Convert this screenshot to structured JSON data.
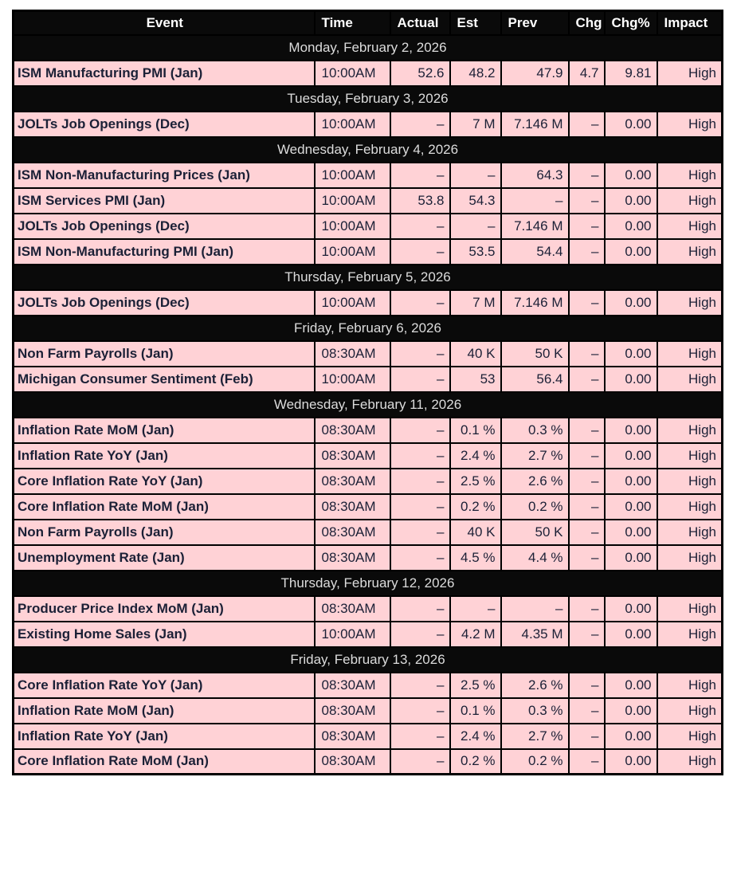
{
  "colors": {
    "header_bg": "#0a0a0a",
    "header_text": "#ffffff",
    "date_bg": "#0a0a0a",
    "date_text": "#dcdcdc",
    "row_bg": "#ffd2d6",
    "data_text": "#1b2036",
    "border": "#000000",
    "page_bg": "#ffffff"
  },
  "chart_data": {
    "type": "table",
    "columns": [
      "Event",
      "Time",
      "Actual",
      "Est",
      "Prev",
      "Chg",
      "Chg%",
      "Impact"
    ],
    "sections": [
      {
        "date": "Monday, February 2, 2026",
        "rows": [
          {
            "event": "ISM Manufacturing PMI (Jan)",
            "time": "10:00AM",
            "actual": "52.6",
            "est": "48.2",
            "prev": "47.9",
            "chg": "4.7",
            "chgpct": "9.81",
            "impact": "High"
          }
        ]
      },
      {
        "date": "Tuesday, February 3, 2026",
        "rows": [
          {
            "event": "JOLTs Job Openings (Dec)",
            "time": "10:00AM",
            "actual": "–",
            "est": "7 M",
            "prev": "7.146 M",
            "chg": "–",
            "chgpct": "0.00",
            "impact": "High"
          }
        ]
      },
      {
        "date": "Wednesday, February 4, 2026",
        "rows": [
          {
            "event": "ISM Non-Manufacturing Prices (Jan)",
            "time": "10:00AM",
            "actual": "–",
            "est": "–",
            "prev": "64.3",
            "chg": "–",
            "chgpct": "0.00",
            "impact": "High"
          },
          {
            "event": "ISM Services PMI (Jan)",
            "time": "10:00AM",
            "actual": "53.8",
            "est": "54.3",
            "prev": "–",
            "chg": "–",
            "chgpct": "0.00",
            "impact": "High"
          },
          {
            "event": "JOLTs Job Openings (Dec)",
            "time": "10:00AM",
            "actual": "–",
            "est": "–",
            "prev": "7.146 M",
            "chg": "–",
            "chgpct": "0.00",
            "impact": "High"
          },
          {
            "event": "ISM Non-Manufacturing PMI (Jan)",
            "time": "10:00AM",
            "actual": "–",
            "est": "53.5",
            "prev": "54.4",
            "chg": "–",
            "chgpct": "0.00",
            "impact": "High"
          }
        ]
      },
      {
        "date": "Thursday, February 5, 2026",
        "rows": [
          {
            "event": "JOLTs Job Openings (Dec)",
            "time": "10:00AM",
            "actual": "–",
            "est": "7 M",
            "prev": "7.146 M",
            "chg": "–",
            "chgpct": "0.00",
            "impact": "High"
          }
        ]
      },
      {
        "date": "Friday, February 6, 2026",
        "rows": [
          {
            "event": "Non Farm Payrolls (Jan)",
            "time": "08:30AM",
            "actual": "–",
            "est": "40 K",
            "prev": "50 K",
            "chg": "–",
            "chgpct": "0.00",
            "impact": "High"
          },
          {
            "event": "Michigan Consumer Sentiment (Feb)",
            "time": "10:00AM",
            "actual": "–",
            "est": "53",
            "prev": "56.4",
            "chg": "–",
            "chgpct": "0.00",
            "impact": "High"
          }
        ]
      },
      {
        "date": "Wednesday, February 11, 2026",
        "rows": [
          {
            "event": "Inflation Rate MoM (Jan)",
            "time": "08:30AM",
            "actual": "–",
            "est": "0.1 %",
            "prev": "0.3 %",
            "chg": "–",
            "chgpct": "0.00",
            "impact": "High"
          },
          {
            "event": "Inflation Rate YoY (Jan)",
            "time": "08:30AM",
            "actual": "–",
            "est": "2.4 %",
            "prev": "2.7 %",
            "chg": "–",
            "chgpct": "0.00",
            "impact": "High"
          },
          {
            "event": "Core Inflation Rate YoY (Jan)",
            "time": "08:30AM",
            "actual": "–",
            "est": "2.5 %",
            "prev": "2.6 %",
            "chg": "–",
            "chgpct": "0.00",
            "impact": "High"
          },
          {
            "event": "Core Inflation Rate MoM (Jan)",
            "time": "08:30AM",
            "actual": "–",
            "est": "0.2 %",
            "prev": "0.2 %",
            "chg": "–",
            "chgpct": "0.00",
            "impact": "High"
          },
          {
            "event": "Non Farm Payrolls (Jan)",
            "time": "08:30AM",
            "actual": "–",
            "est": "40 K",
            "prev": "50 K",
            "chg": "–",
            "chgpct": "0.00",
            "impact": "High"
          },
          {
            "event": "Unemployment Rate (Jan)",
            "time": "08:30AM",
            "actual": "–",
            "est": "4.5 %",
            "prev": "4.4 %",
            "chg": "–",
            "chgpct": "0.00",
            "impact": "High"
          }
        ]
      },
      {
        "date": "Thursday, February 12, 2026",
        "rows": [
          {
            "event": "Producer Price Index MoM (Jan)",
            "time": "08:30AM",
            "actual": "–",
            "est": "–",
            "prev": "–",
            "chg": "–",
            "chgpct": "0.00",
            "impact": "High"
          },
          {
            "event": "Existing Home Sales (Jan)",
            "time": "10:00AM",
            "actual": "–",
            "est": "4.2 M",
            "prev": "4.35 M",
            "chg": "–",
            "chgpct": "0.00",
            "impact": "High"
          }
        ]
      },
      {
        "date": "Friday, February 13, 2026",
        "rows": [
          {
            "event": "Core Inflation Rate YoY (Jan)",
            "time": "08:30AM",
            "actual": "–",
            "est": "2.5 %",
            "prev": "2.6 %",
            "chg": "–",
            "chgpct": "0.00",
            "impact": "High"
          },
          {
            "event": "Inflation Rate MoM (Jan)",
            "time": "08:30AM",
            "actual": "–",
            "est": "0.1 %",
            "prev": "0.3 %",
            "chg": "–",
            "chgpct": "0.00",
            "impact": "High"
          },
          {
            "event": "Inflation Rate YoY (Jan)",
            "time": "08:30AM",
            "actual": "–",
            "est": "2.4 %",
            "prev": "2.7 %",
            "chg": "–",
            "chgpct": "0.00",
            "impact": "High"
          },
          {
            "event": "Core Inflation Rate MoM (Jan)",
            "time": "08:30AM",
            "actual": "–",
            "est": "0.2 %",
            "prev": "0.2 %",
            "chg": "–",
            "chgpct": "0.00",
            "impact": "High"
          }
        ]
      }
    ]
  }
}
